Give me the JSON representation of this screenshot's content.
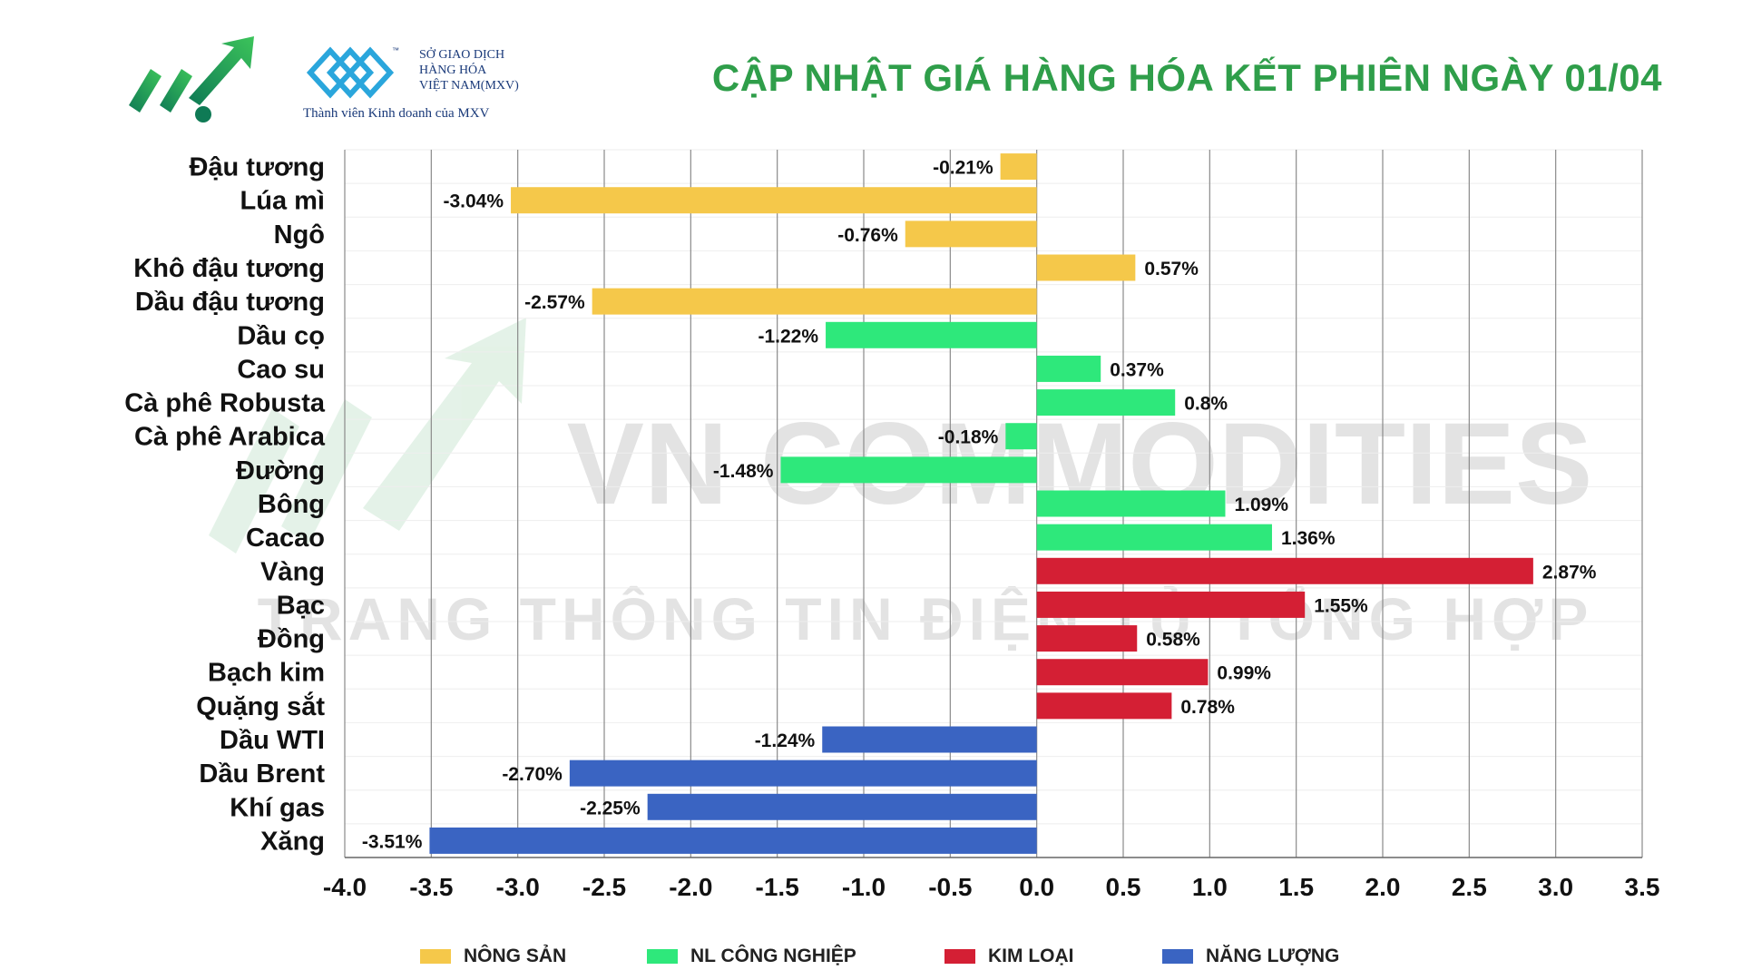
{
  "header": {
    "title": "CẬP NHẬT GIÁ HÀNG HÓA KẾT PHIÊN NGÀY 01/04",
    "exchange_name_lines": [
      "SỞ GIAO DỊCH",
      "HÀNG HÓA",
      "VIỆT NAM(MXV)"
    ],
    "member_text": "Thành viên Kinh doanh của MXV"
  },
  "watermark": {
    "line1": "VN COMMODITIES",
    "line2": "TRANG THÔNG TIN ĐIỆN TỬ TỔNG HỢP"
  },
  "colors": {
    "title_green": "#2f9e4a",
    "nong_san": "#f5c84a",
    "nl_cong_nghiep": "#2ee87b",
    "kim_loai": "#d41f34",
    "nang_luong": "#3a64c2"
  },
  "chart_data": {
    "type": "bar",
    "orientation": "horizontal",
    "xlim": [
      -4.0,
      3.5
    ],
    "x_ticks": [
      "-4.0",
      "-3.5",
      "-3.0",
      "-2.5",
      "-2.0",
      "-1.5",
      "-1.0",
      "-0.5",
      "0.0",
      "0.5",
      "1.0",
      "1.5",
      "2.0",
      "2.5",
      "3.0",
      "3.5"
    ],
    "grid": "vertical",
    "legend_position": "bottom",
    "groups": [
      {
        "name": "NÔNG SẢN",
        "color": "#f5c84a"
      },
      {
        "name": "NL CÔNG NGHIỆP",
        "color": "#2ee87b"
      },
      {
        "name": "KIM LOẠI",
        "color": "#d41f34"
      },
      {
        "name": "NĂNG LƯỢNG",
        "color": "#3a64c2"
      }
    ],
    "bars": [
      {
        "category": "Đậu tương",
        "value": -0.21,
        "label": "-0.21%",
        "group": 0
      },
      {
        "category": "Lúa mì",
        "value": -3.04,
        "label": "-3.04%",
        "group": 0
      },
      {
        "category": "Ngô",
        "value": -0.76,
        "label": "-0.76%",
        "group": 0
      },
      {
        "category": "Khô đậu tương",
        "value": 0.57,
        "label": "0.57%",
        "group": 0
      },
      {
        "category": "Dầu đậu tương",
        "value": -2.57,
        "label": "-2.57%",
        "group": 0
      },
      {
        "category": "Dầu cọ",
        "value": -1.22,
        "label": "-1.22%",
        "group": 1
      },
      {
        "category": "Cao su",
        "value": 0.37,
        "label": "0.37%",
        "group": 1
      },
      {
        "category": "Cà phê Robusta",
        "value": 0.8,
        "label": "0.8%",
        "group": 1
      },
      {
        "category": "Cà phê Arabica",
        "value": -0.18,
        "label": "-0.18%",
        "group": 1
      },
      {
        "category": "Đường",
        "value": -1.48,
        "label": "-1.48%",
        "group": 1
      },
      {
        "category": "Bông",
        "value": 1.09,
        "label": "1.09%",
        "group": 1
      },
      {
        "category": "Cacao",
        "value": 1.36,
        "label": "1.36%",
        "group": 1
      },
      {
        "category": "Vàng",
        "value": 2.87,
        "label": "2.87%",
        "group": 2
      },
      {
        "category": "Bạc",
        "value": 1.55,
        "label": "1.55%",
        "group": 2
      },
      {
        "category": "Đồng",
        "value": 0.58,
        "label": "0.58%",
        "group": 2
      },
      {
        "category": "Bạch kim",
        "value": 0.99,
        "label": "0.99%",
        "group": 2
      },
      {
        "category": "Quặng sắt",
        "value": 0.78,
        "label": "0.78%",
        "group": 2
      },
      {
        "category": "Dầu WTI",
        "value": -1.24,
        "label": "-1.24%",
        "group": 3
      },
      {
        "category": "Dầu Brent",
        "value": -2.7,
        "label": "-2.70%",
        "group": 3
      },
      {
        "category": "Khí gas",
        "value": -2.25,
        "label": "-2.25%",
        "group": 3
      },
      {
        "category": "Xăng",
        "value": -3.51,
        "label": "-3.51%",
        "group": 3
      }
    ]
  }
}
